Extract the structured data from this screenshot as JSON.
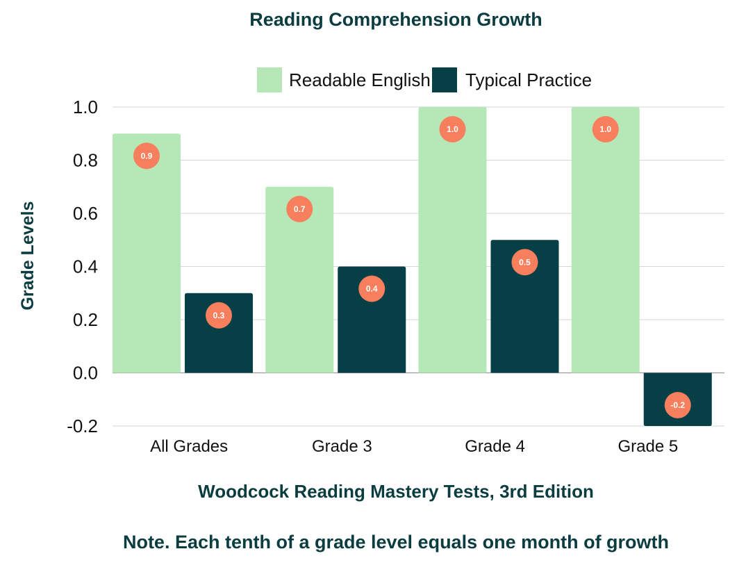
{
  "chart_data": {
    "type": "bar",
    "title": "Reading Comprehension Growth",
    "xlabel": "Woodcock Reading Mastery Tests, 3rd Edition",
    "ylabel": "Grade Levels",
    "note": "Note. Each tenth of a grade level equals one month of growth",
    "categories": [
      "All Grades",
      "Grade 3",
      "Grade 4",
      "Grade 5"
    ],
    "series": [
      {
        "name": "Readable English",
        "color": "#b5e8b6",
        "values": [
          0.9,
          0.7,
          1.0,
          1.0
        ]
      },
      {
        "name": "Typical Practice",
        "color": "#063f45",
        "values": [
          0.3,
          0.4,
          0.5,
          -0.2
        ]
      }
    ],
    "ylim": [
      -0.2,
      1.0
    ],
    "yticks": [
      1.0,
      0.8,
      0.6,
      0.4,
      0.2,
      0.0,
      -0.2
    ],
    "ytick_labels": [
      "1.0",
      "0.8",
      "0.6",
      "0.4",
      "0.2",
      "0.0",
      "-0.2"
    ],
    "data_labels": [
      [
        "0.9",
        "0.7",
        "1.0",
        "1.0"
      ],
      [
        "0.3",
        "0.4",
        "0.5",
        "-0.2"
      ]
    ],
    "data_label_color": "#f77f5e",
    "legend_position": "top",
    "grid": true
  }
}
